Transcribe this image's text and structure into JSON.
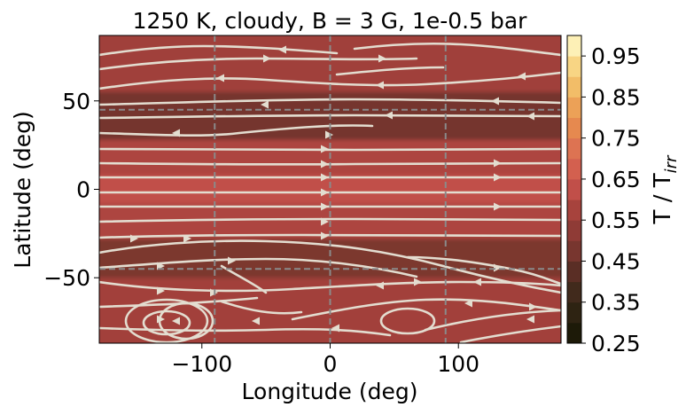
{
  "chart_data": {
    "type": "heatmap",
    "title": "1250 K, cloudy, B = 3 G, 1e-0.5 bar",
    "xlabel": "Longitude (deg)",
    "ylabel": "Latitude (deg)",
    "xlim": [
      -180,
      180
    ],
    "ylim": [
      -87,
      87
    ],
    "x_ticks": [
      -100,
      0,
      100
    ],
    "x_tick_labels": [
      "−100",
      "0",
      "100"
    ],
    "y_ticks": [
      -50,
      0,
      50
    ],
    "y_tick_labels": [
      "−50",
      "0",
      "50"
    ],
    "reference_lines": {
      "vertical": [
        -90,
        0,
        90
      ],
      "horizontal": [
        -45,
        45
      ],
      "style": "dashed gray"
    },
    "colorbar": {
      "label_main": "T / T",
      "label_sub": "irr",
      "range": [
        0.25,
        1.0
      ],
      "levels": [
        0.25,
        0.3,
        0.35,
        0.4,
        0.45,
        0.5,
        0.55,
        0.6,
        0.65,
        0.7,
        0.75,
        0.8,
        0.85,
        0.9,
        0.95,
        1.0
      ],
      "tick_values": [
        0.25,
        0.35,
        0.45,
        0.55,
        0.65,
        0.75,
        0.85,
        0.95
      ],
      "tick_labels": [
        "0.25",
        "0.35",
        "0.45",
        "0.55",
        "0.65",
        "0.75",
        "0.85",
        "0.95"
      ],
      "colors": [
        "#1d1a08",
        "#2e2312",
        "#412a1c",
        "#5a2e25",
        "#78362f",
        "#8f3b36",
        "#a7433d",
        "#c14f49",
        "#d3604f",
        "#dd7352",
        "#e6894f",
        "#eca157",
        "#f2bd68",
        "#f8d584",
        "#fdf0b6"
      ]
    },
    "temperature_bands": [
      {
        "lat": [
          -87,
          -50
        ],
        "value": 0.565,
        "color": "#a2413b"
      },
      {
        "lat": [
          -50,
          -28
        ],
        "value": 0.49,
        "color": "#7b372f"
      },
      {
        "lat": [
          -28,
          -8
        ],
        "value": 0.585,
        "color": "#ad4440"
      },
      {
        "lat": [
          -8,
          8
        ],
        "value": 0.625,
        "color": "#c14f49"
      },
      {
        "lat": [
          8,
          28
        ],
        "value": 0.585,
        "color": "#ad4440"
      },
      {
        "lat": [
          28,
          55
        ],
        "value": 0.47,
        "color": "#74352e"
      },
      {
        "lat": [
          55,
          87
        ],
        "value": 0.545,
        "color": "#a0403a"
      }
    ],
    "stream_color": "#e3ddd0"
  }
}
